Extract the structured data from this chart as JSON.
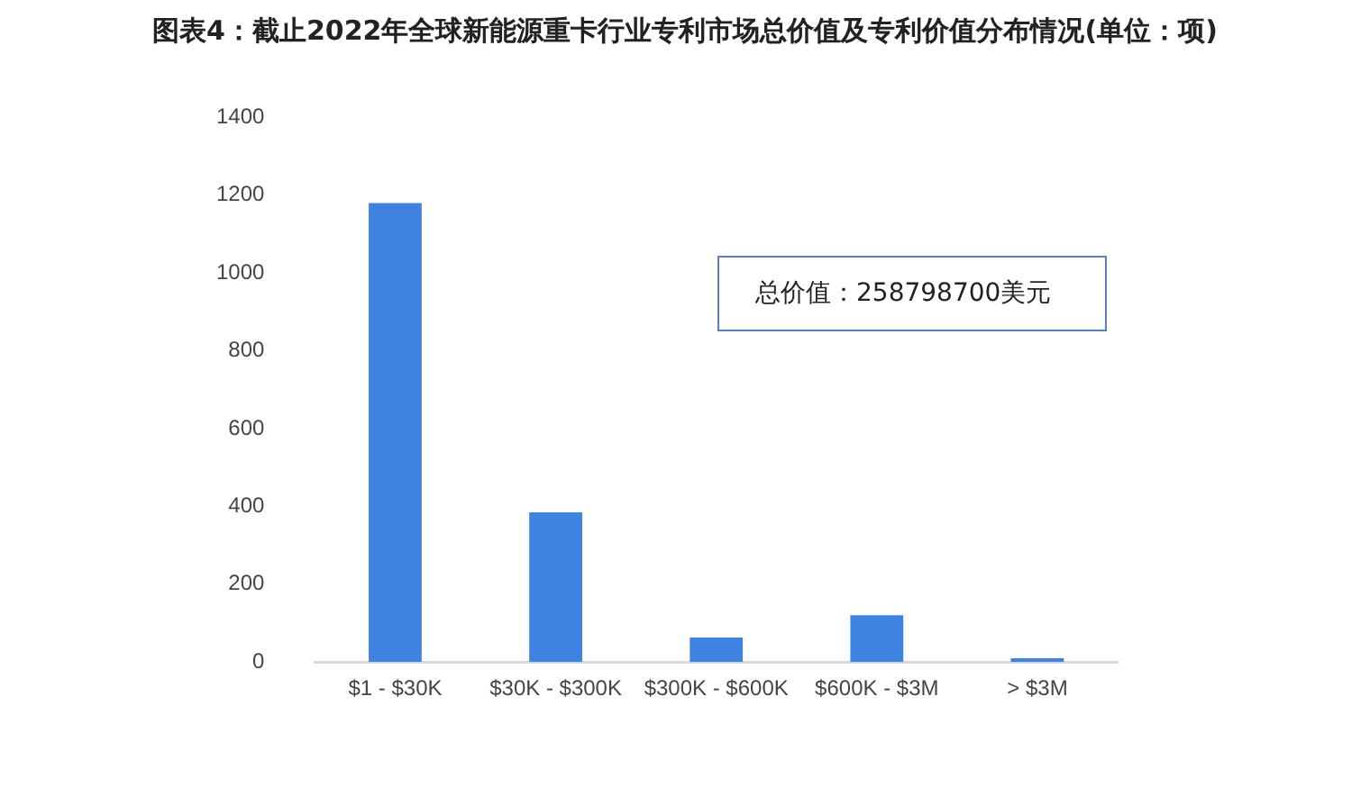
{
  "chart_data": {
    "type": "bar",
    "title": "图表4：截止2022年全球新能源重卡行业专利市场总价值及专利价值分布情况(单位：项)",
    "categories": [
      "$1 - $30K",
      "$30K - $300K",
      "$300K - $600K",
      "$600K - $3M",
      "> $3M"
    ],
    "values": [
      1180,
      385,
      63,
      120,
      10
    ],
    "color": "#3f83e0",
    "ylim": [
      0,
      1400
    ],
    "yticks": [
      0,
      200,
      400,
      600,
      800,
      1000,
      1200,
      1400
    ],
    "grid": false,
    "annotations": [
      "总价值：258798700美元"
    ]
  }
}
